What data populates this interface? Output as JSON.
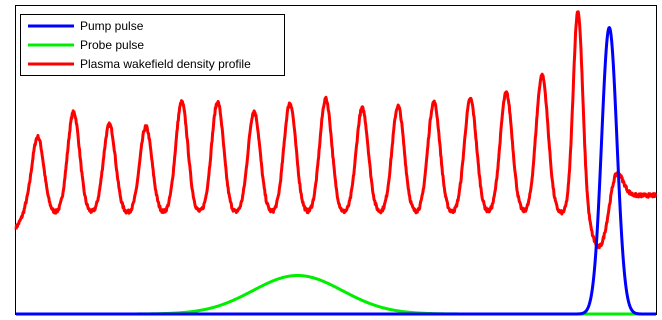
{
  "chart_data": {
    "type": "line",
    "title": "",
    "xlabel": "",
    "ylabel": "",
    "xlim": [
      0,
      1
    ],
    "ylim": [
      0,
      1
    ],
    "grid": false,
    "ticks": false,
    "legend_placement": "top-left",
    "series": [
      {
        "name": "Pump pulse",
        "color": "#0000ff",
        "shape": "gaussian",
        "center": 0.927,
        "sigma": 0.012,
        "amplitude": 0.93,
        "baseline": 0.0
      },
      {
        "name": "Probe pulse",
        "color": "#00ee00",
        "shape": "gaussian",
        "center": 0.44,
        "sigma": 0.07,
        "amplitude": 0.125,
        "baseline": 0.0
      },
      {
        "name": "Plasma wakefield density profile",
        "color": "#ff0000",
        "shape": "wakefield",
        "baseline": 0.325,
        "peaks": [
          {
            "x": 0.034,
            "y": 0.575
          },
          {
            "x": 0.09,
            "y": 0.655
          },
          {
            "x": 0.146,
            "y": 0.615
          },
          {
            "x": 0.203,
            "y": 0.608
          },
          {
            "x": 0.259,
            "y": 0.688
          },
          {
            "x": 0.315,
            "y": 0.688
          },
          {
            "x": 0.372,
            "y": 0.658
          },
          {
            "x": 0.428,
            "y": 0.685
          },
          {
            "x": 0.484,
            "y": 0.698
          },
          {
            "x": 0.541,
            "y": 0.668
          },
          {
            "x": 0.597,
            "y": 0.675
          },
          {
            "x": 0.653,
            "y": 0.688
          },
          {
            "x": 0.71,
            "y": 0.698
          },
          {
            "x": 0.766,
            "y": 0.718
          },
          {
            "x": 0.822,
            "y": 0.775
          },
          {
            "x": 0.878,
            "y": 0.985
          },
          {
            "x": 0.939,
            "y": 0.465
          }
        ],
        "trough_before_last": 0.215,
        "tail_level": 0.385
      }
    ]
  }
}
